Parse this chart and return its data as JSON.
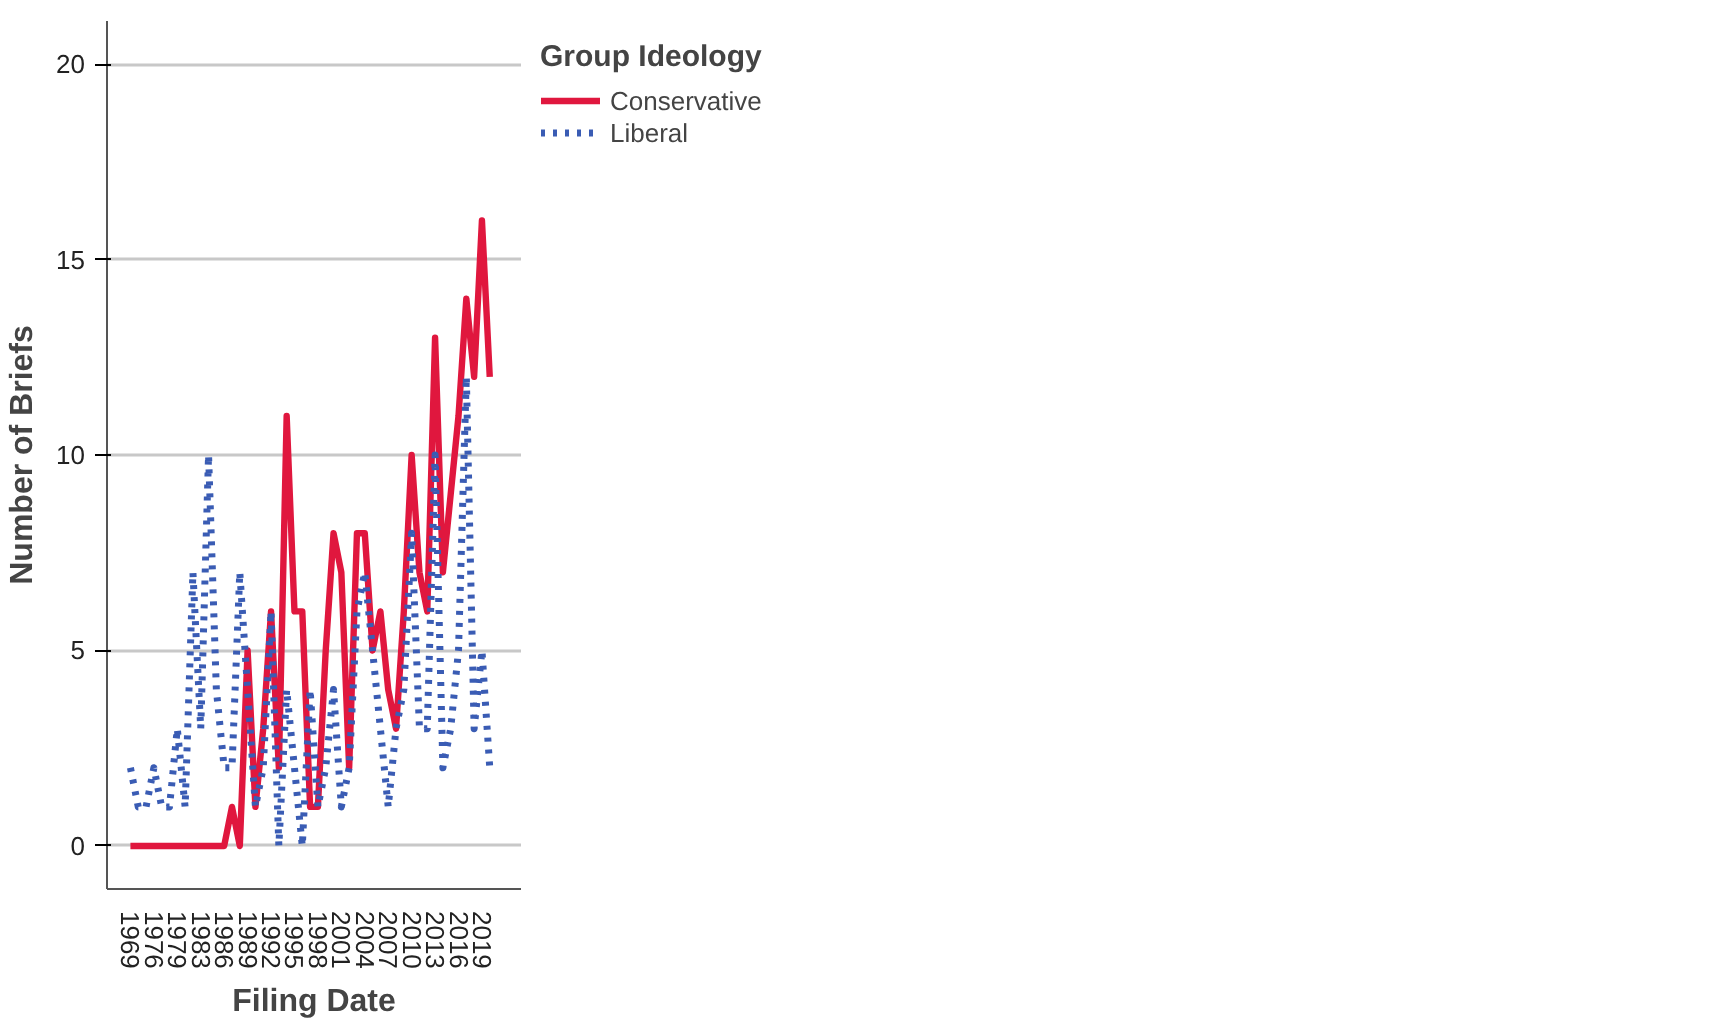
{
  "chart_data": {
    "type": "line",
    "xlabel": "Filing Date",
    "ylabel": "Number of Briefs",
    "legend_title": "Group Ideology",
    "legend": "top right",
    "grid": "y",
    "marker": "none",
    "categories": [
      "1969",
      null,
      null,
      "1976",
      null,
      null,
      "1979",
      null,
      null,
      "1983",
      null,
      null,
      "1986",
      null,
      null,
      "1989",
      null,
      null,
      "1992",
      null,
      null,
      "1995",
      null,
      null,
      "1998",
      null,
      null,
      "2001",
      null,
      null,
      "2004",
      null,
      null,
      "2007",
      null,
      null,
      "2010",
      null,
      null,
      "2013",
      null,
      null,
      "2016",
      null,
      null,
      "2019",
      null
    ],
    "ylim": [
      -1.1,
      21.1
    ],
    "yticks": [
      0,
      5,
      10,
      15,
      20
    ],
    "series": [
      {
        "name": "Conservative",
        "color": "#e0173e",
        "line_style": "solid",
        "values": [
          0,
          0,
          0,
          0,
          0,
          0,
          0,
          0,
          0,
          0,
          0,
          0,
          0,
          1,
          0,
          5,
          1,
          3,
          6,
          2,
          11,
          6,
          6,
          1,
          1,
          5,
          8,
          7,
          2,
          8,
          8,
          5,
          6,
          4,
          3,
          6,
          10,
          7,
          6,
          13,
          7,
          9,
          11,
          14,
          12,
          16,
          12
        ]
      },
      {
        "name": "Liberal",
        "color": "#3a5cb4",
        "line_style": "dotted",
        "values": [
          2,
          1,
          1,
          2,
          1,
          1,
          3,
          1,
          7,
          3,
          10,
          4,
          2,
          2,
          7,
          4,
          1,
          2,
          6,
          0,
          4,
          2,
          0,
          4,
          1,
          2,
          4,
          1,
          2,
          6,
          7,
          5,
          3,
          1,
          3,
          4,
          8,
          3,
          3,
          10,
          2,
          3,
          5,
          12,
          3,
          5,
          2
        ]
      }
    ]
  }
}
